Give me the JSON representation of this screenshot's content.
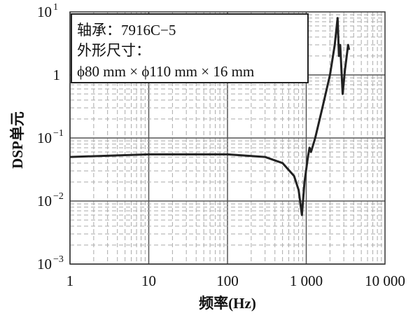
{
  "chart_data": {
    "type": "line",
    "xlabel": "频率(Hz)",
    "ylabel": "DSP单元",
    "x_scale": "log",
    "y_scale": "log",
    "xlim": [
      1,
      10000
    ],
    "ylim": [
      0.001,
      10
    ],
    "grid": true,
    "x_ticks": [
      "1",
      "10",
      "100",
      "1 000",
      "10 000"
    ],
    "y_ticks": [
      {
        "base": "10",
        "exp": "1"
      },
      {
        "base": "1",
        "exp": ""
      },
      {
        "base": "10",
        "exp": "−1"
      },
      {
        "base": "10",
        "exp": "−2"
      },
      {
        "base": "10",
        "exp": "−3"
      }
    ],
    "annotation": [
      "轴承：7916C−5",
      "外形尺寸：",
      "ϕ80 mm × ϕ110 mm × 16 mm"
    ],
    "line_color": "#222222",
    "series": [
      {
        "x": [
          1,
          10,
          100,
          300,
          500,
          700,
          800,
          880,
          950,
          1050,
          1100,
          1150,
          1300,
          1600,
          2000,
          2300,
          2500,
          2600,
          2700,
          2900,
          3100,
          3400,
          3500
        ],
        "y": [
          0.05,
          0.055,
          0.055,
          0.05,
          0.04,
          0.025,
          0.015,
          0.006,
          0.02,
          0.05,
          0.07,
          0.06,
          0.1,
          0.3,
          1,
          3,
          8,
          2,
          3,
          0.5,
          1.2,
          3,
          2.5
        ]
      }
    ]
  }
}
